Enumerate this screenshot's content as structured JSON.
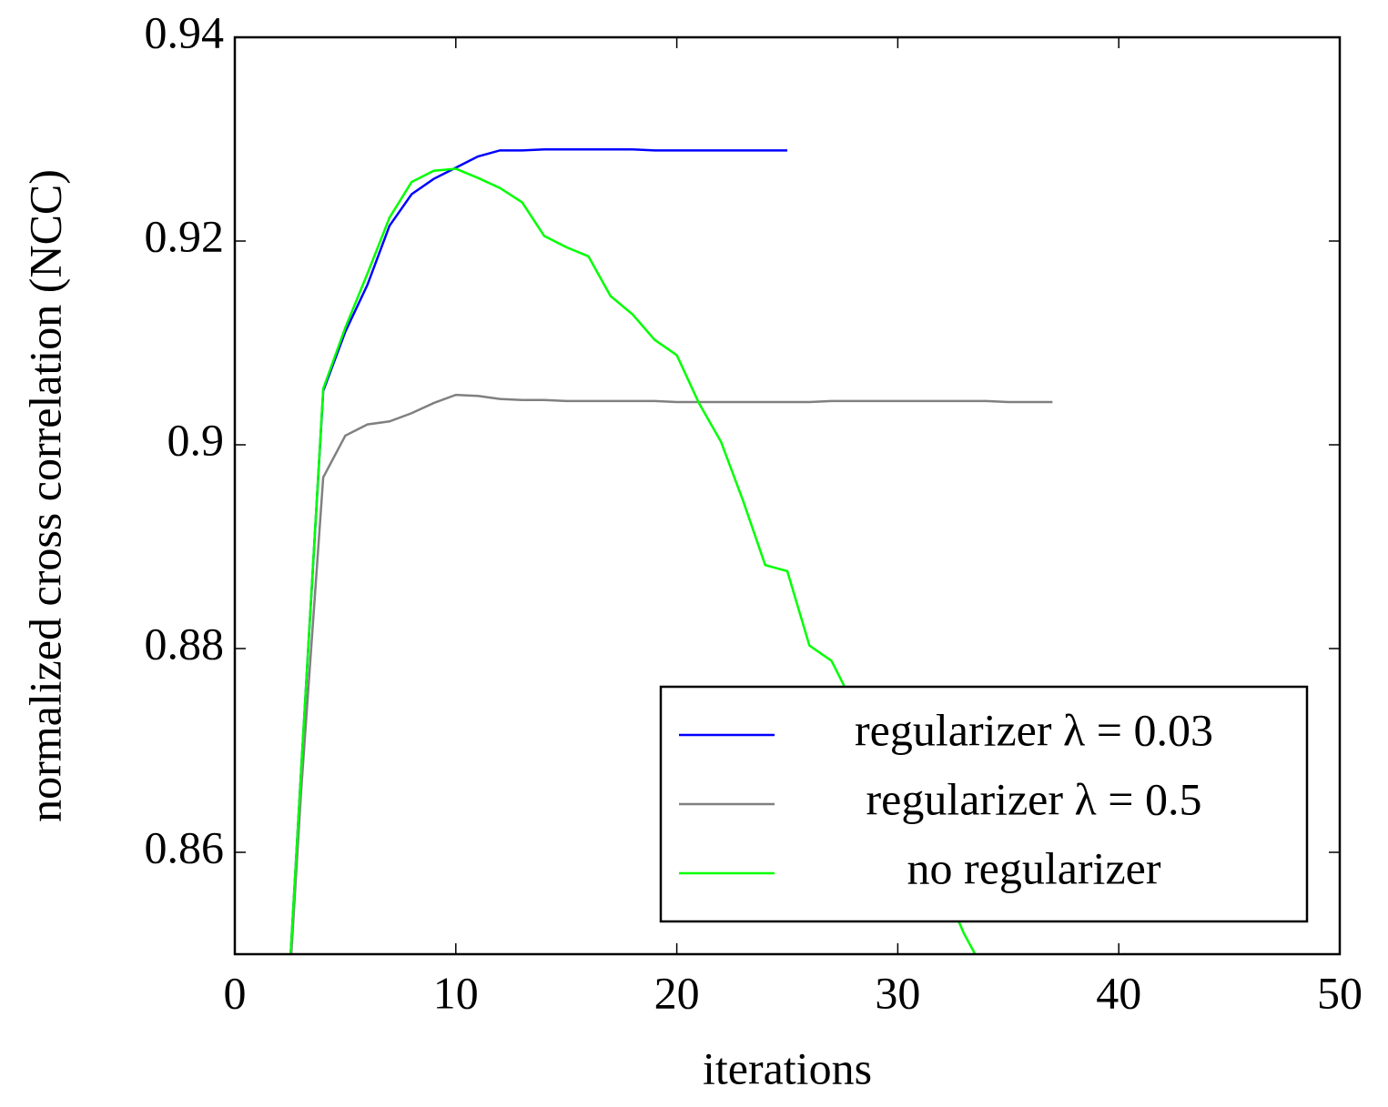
{
  "chart_data": {
    "type": "line",
    "xlabel": "iterations",
    "ylabel": "normalized cross correlation (NCC)",
    "xlim": [
      0,
      50
    ],
    "xticks": [
      0,
      10,
      20,
      30,
      40,
      50
    ],
    "ylim": [
      0.85,
      0.94
    ],
    "yticks": [
      0.86,
      0.88,
      0.9,
      0.92,
      0.94
    ],
    "legend": "south east",
    "series": [
      {
        "name": "regularizer λ = 0.03",
        "color": "#0000ff",
        "x": [
          2,
          3,
          4,
          5,
          6,
          7,
          8,
          9,
          10,
          11,
          12,
          13,
          14,
          15,
          16,
          17,
          18,
          19,
          20,
          21,
          22,
          23,
          24,
          25
        ],
        "values": [
          0.83,
          0.868,
          0.9053,
          0.9111,
          0.9157,
          0.9215,
          0.9246,
          0.9261,
          0.9272,
          0.9283,
          0.9289,
          0.9289,
          0.929,
          0.929,
          0.929,
          0.929,
          0.929,
          0.9289,
          0.9289,
          0.9289,
          0.9289,
          0.9289,
          0.9289,
          0.9289
        ]
      },
      {
        "name": "regularizer λ = 0.5",
        "color": "#808080",
        "x": [
          2,
          3,
          4,
          5,
          6,
          7,
          8,
          9,
          10,
          11,
          12,
          13,
          14,
          15,
          16,
          17,
          18,
          19,
          20,
          21,
          22,
          23,
          24,
          25,
          26,
          27,
          28,
          29,
          30,
          31,
          32,
          33,
          34,
          35,
          36,
          37
        ],
        "values": [
          0.83,
          0.866,
          0.8968,
          0.9009,
          0.902,
          0.9023,
          0.9031,
          0.9041,
          0.9049,
          0.9048,
          0.9045,
          0.9044,
          0.9044,
          0.9043,
          0.9043,
          0.9043,
          0.9043,
          0.9043,
          0.9042,
          0.9042,
          0.9042,
          0.9042,
          0.9042,
          0.9042,
          0.9042,
          0.9043,
          0.9043,
          0.9043,
          0.9043,
          0.9043,
          0.9043,
          0.9043,
          0.9043,
          0.9042,
          0.9042,
          0.9042
        ]
      },
      {
        "name": "no regularizer",
        "color": "#00ff00",
        "x": [
          2,
          3,
          4,
          5,
          6,
          7,
          8,
          9,
          10,
          11,
          12,
          13,
          14,
          15,
          16,
          17,
          18,
          19,
          20,
          21,
          22,
          23,
          24,
          25,
          26,
          27,
          28,
          29,
          30,
          31,
          32,
          33,
          34
        ],
        "values": [
          0.83,
          0.868,
          0.9055,
          0.9115,
          0.9168,
          0.9223,
          0.9258,
          0.9269,
          0.9271,
          0.9262,
          0.9252,
          0.9238,
          0.9205,
          0.9194,
          0.9185,
          0.9146,
          0.9128,
          0.9103,
          0.9088,
          0.9041,
          0.9003,
          0.8945,
          0.8882,
          0.8876,
          0.8803,
          0.8788,
          0.8745,
          0.87,
          0.8655,
          0.861,
          0.857,
          0.852,
          0.848
        ]
      }
    ]
  }
}
